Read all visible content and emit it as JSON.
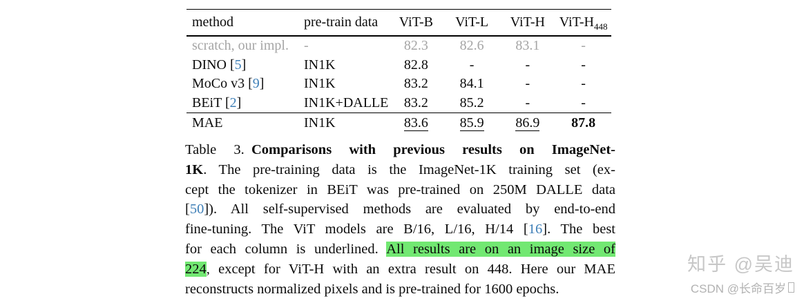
{
  "colors": {
    "cite": "#3e7fb7",
    "hl": "#72e872",
    "muted": "#a5a5a5",
    "rule": "#000000",
    "wm1": "#c7c7c7",
    "wm2": "#b2b2b2"
  },
  "table": {
    "header": {
      "method": "method",
      "pretrain": "pre-train data",
      "cols": [
        {
          "label": "ViT-B"
        },
        {
          "label": "ViT-L"
        },
        {
          "label": "ViT-H"
        },
        {
          "label": "ViT-H",
          "sub": "448"
        }
      ]
    },
    "rows": [
      {
        "method": "scratch, our impl.",
        "cite": "",
        "pretrain": "-",
        "values": [
          "82.3",
          "82.6",
          "83.1",
          "-"
        ],
        "muted": true
      },
      {
        "method": "DINO",
        "cite": "5",
        "pretrain": "IN1K",
        "values": [
          "82.8",
          "-",
          "-",
          "-"
        ]
      },
      {
        "method": "MoCo v3",
        "cite": "9",
        "pretrain": "IN1K",
        "values": [
          "83.2",
          "84.1",
          "-",
          "-"
        ]
      },
      {
        "method": "BEiT",
        "cite": "2",
        "pretrain": "IN1K+DALLE",
        "values": [
          "83.2",
          "85.2",
          "-",
          "-"
        ]
      },
      {
        "method": "MAE",
        "cite": "",
        "pretrain": "IN1K",
        "values": [
          "83.6",
          "85.9",
          "86.9",
          "87.8"
        ],
        "underline": [
          true,
          true,
          true,
          false
        ],
        "bold": [
          false,
          false,
          false,
          true
        ],
        "separator_above": true
      }
    ]
  },
  "caption": {
    "lines": [
      [
        {
          "t": "Table 3. ",
          "s": ""
        },
        {
          "t": "Comparisons with previous results on ImageNet-",
          "s": "b"
        }
      ],
      [
        {
          "t": "1K",
          "s": "b"
        },
        {
          "t": ". The pre-training data is the ImageNet-1K training set (ex-",
          "s": ""
        }
      ],
      [
        {
          "t": "cept the tokenizer in BEiT was pre-trained on 250M DALLE data",
          "s": ""
        }
      ],
      [
        {
          "t": "[",
          "s": ""
        },
        {
          "t": "50",
          "s": "c"
        },
        {
          "t": "]). All self-supervised methods are evaluated by end-to-end",
          "s": ""
        }
      ],
      [
        {
          "t": "fine-tuning. The ViT models are B/16, L/16, H/14 [",
          "s": ""
        },
        {
          "t": "16",
          "s": "c"
        },
        {
          "t": "]. The best",
          "s": ""
        }
      ],
      [
        {
          "t": "for each column is underlined. ",
          "s": ""
        },
        {
          "t": "All results are on an image size of",
          "s": "h"
        }
      ],
      [
        {
          "t": "224",
          "s": "h"
        },
        {
          "t": ", except for ViT-H with an extra result on 448. Here our MAE",
          "s": ""
        }
      ],
      [
        {
          "t": "reconstructs normalized pixels and is pre-trained for 1600 epochs.",
          "s": ""
        }
      ]
    ]
  },
  "watermark": {
    "line1": "知乎 @吴迪",
    "line2": "CSDN @长命百岁"
  }
}
